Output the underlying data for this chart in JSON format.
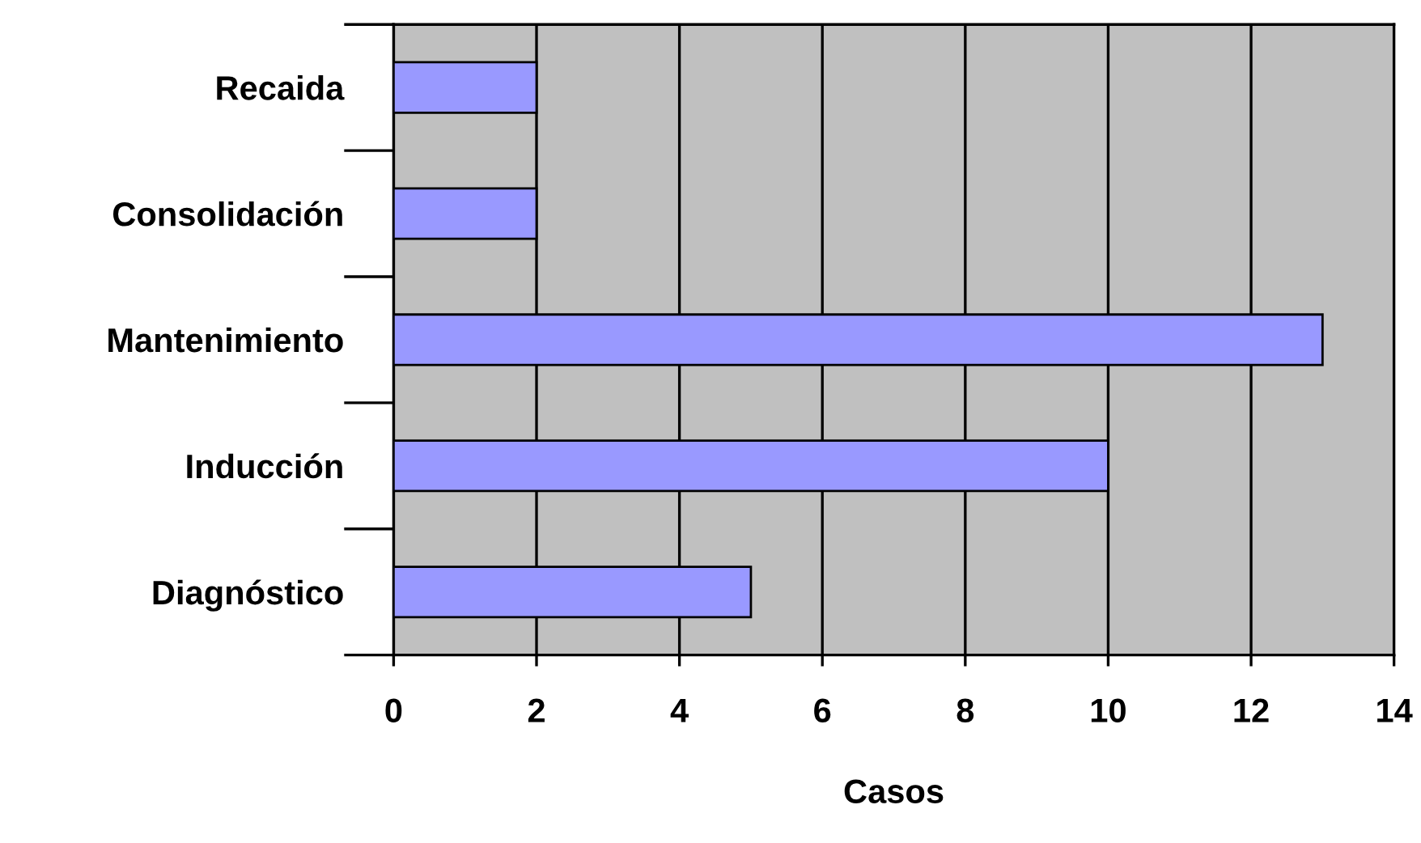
{
  "chart_data": {
    "type": "bar",
    "orientation": "horizontal",
    "xlabel": "Casos",
    "categories": [
      "Recaida",
      "Consolidación",
      "Mantenimiento",
      "Inducción",
      "Diagnóstico"
    ],
    "values": [
      2,
      2,
      13,
      10,
      5
    ],
    "color": "#9999ff",
    "xlim": [
      0,
      14
    ],
    "xticks": [
      0,
      2,
      4,
      6,
      8,
      10,
      12,
      14
    ],
    "grid": "x",
    "legend": false
  }
}
